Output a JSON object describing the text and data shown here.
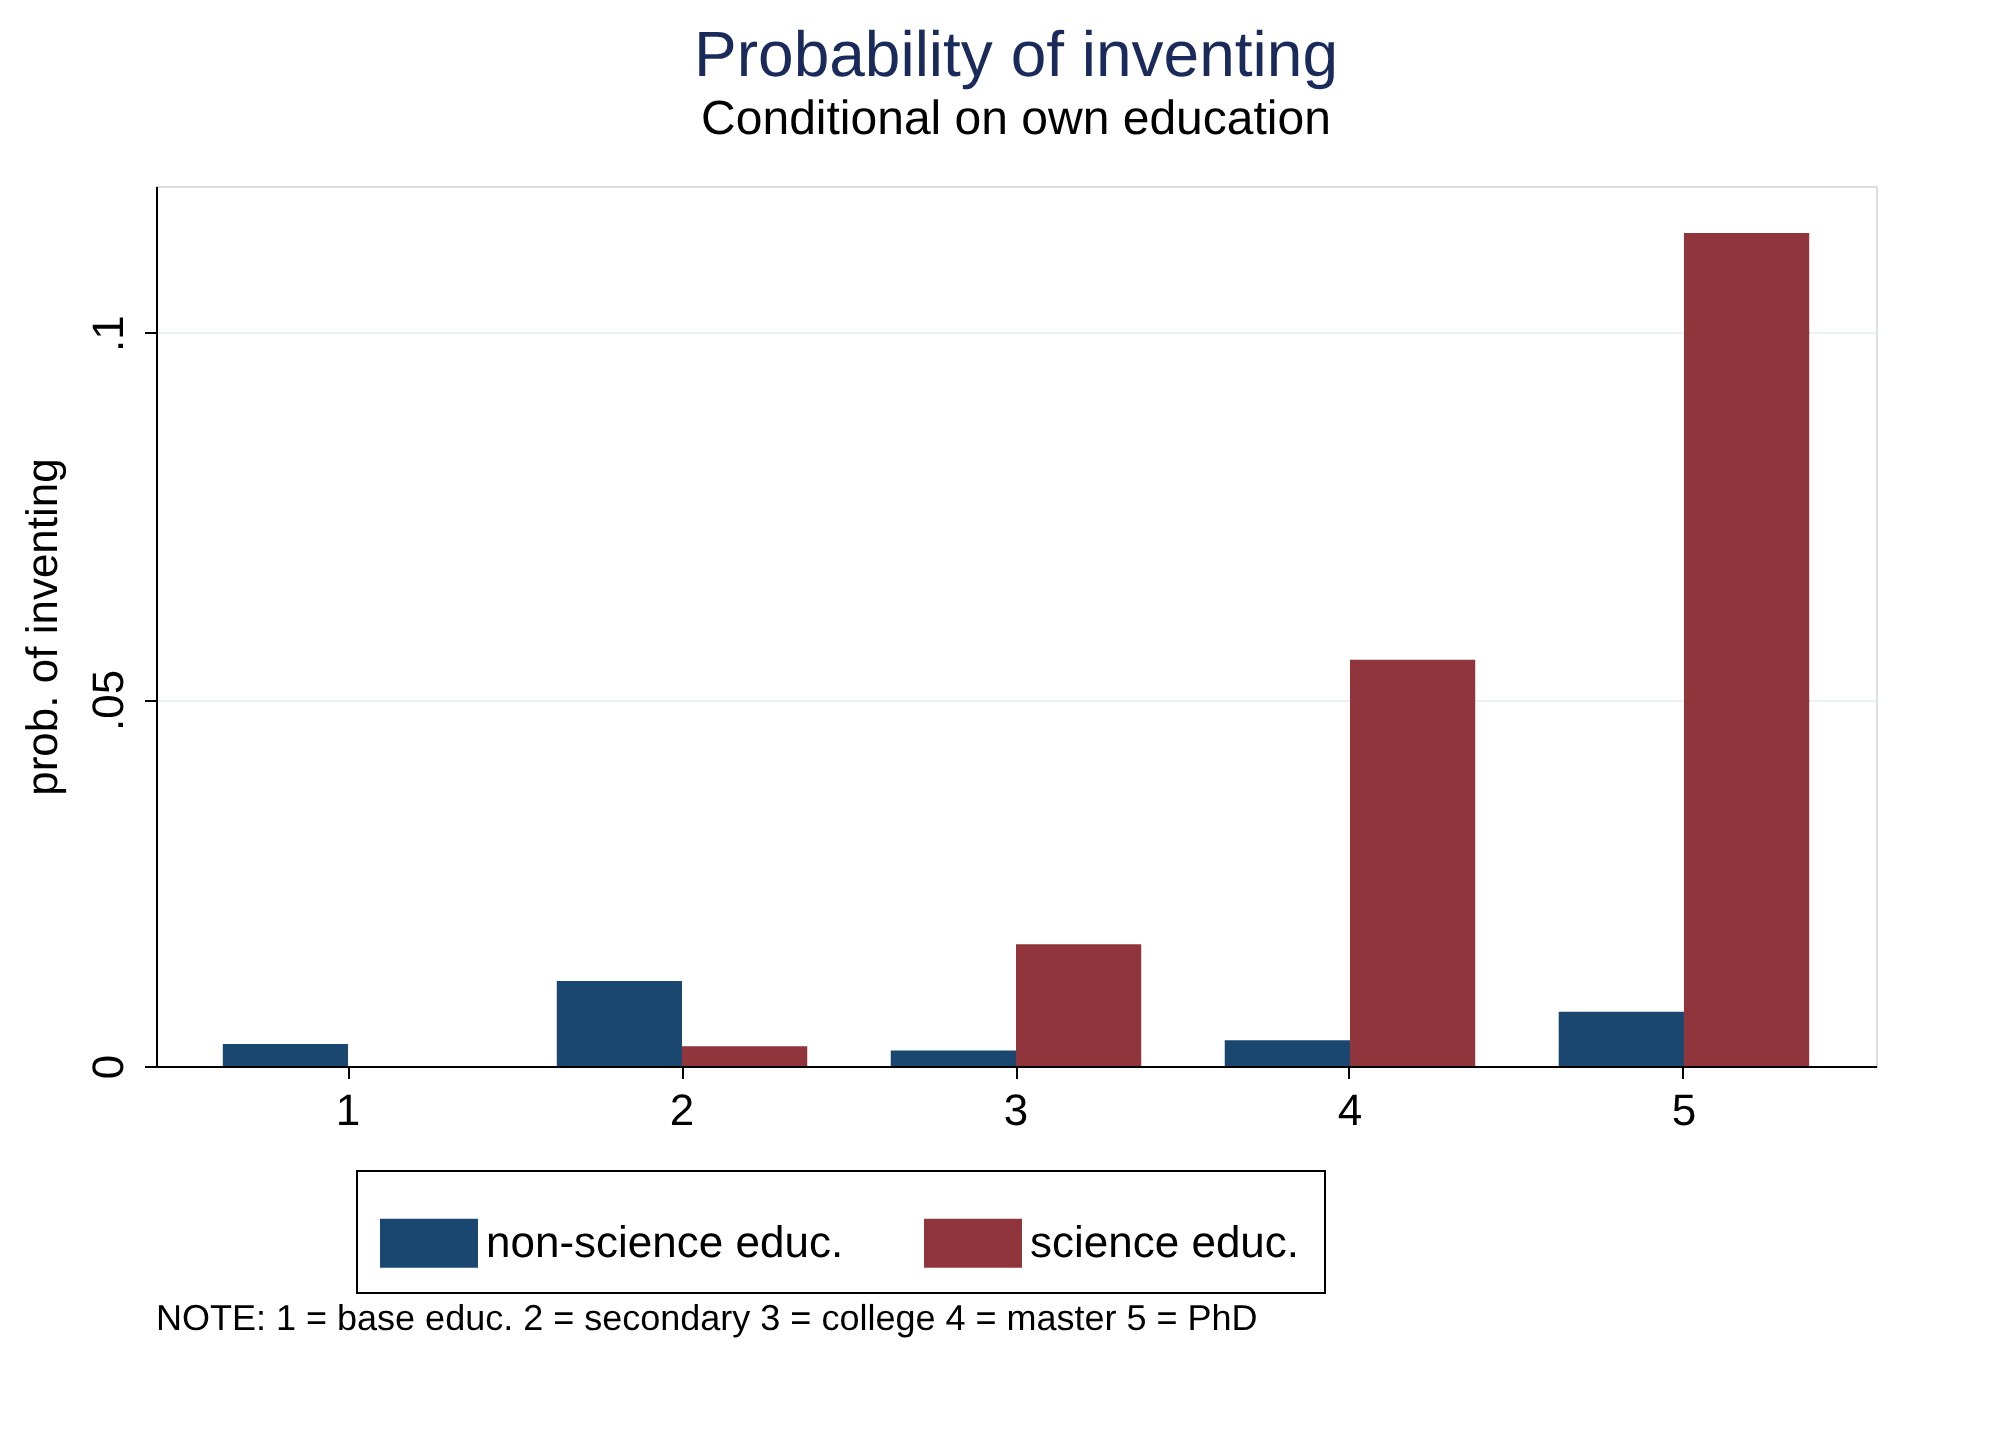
{
  "chart_data": {
    "type": "bar",
    "title": "Probability of inventing",
    "subtitle": "Conditional on own education",
    "ylabel": "prob. of inventing",
    "categories": [
      "1",
      "2",
      "3",
      "4",
      "5"
    ],
    "series": [
      {
        "name": "non-science educ.",
        "color": "#1a476f",
        "values": [
          0.003,
          0.0116,
          0.0021,
          0.0035,
          0.0074
        ]
      },
      {
        "name": "science educ.",
        "color": "#90353b",
        "values": [
          0,
          0.0027,
          0.0166,
          0.0554,
          0.1136
        ]
      }
    ],
    "ylim": [
      0,
      0.12
    ],
    "yticks": [
      0,
      {
        "value": 0.05,
        "label": ".05"
      },
      {
        "value": 0.1,
        "label": ".1"
      }
    ],
    "grid": "y",
    "legend": "bottom",
    "annotations": [
      "NOTE: 1 = base educ. 2 = secondary 3 = college 4 = master 5 = PhD"
    ]
  }
}
